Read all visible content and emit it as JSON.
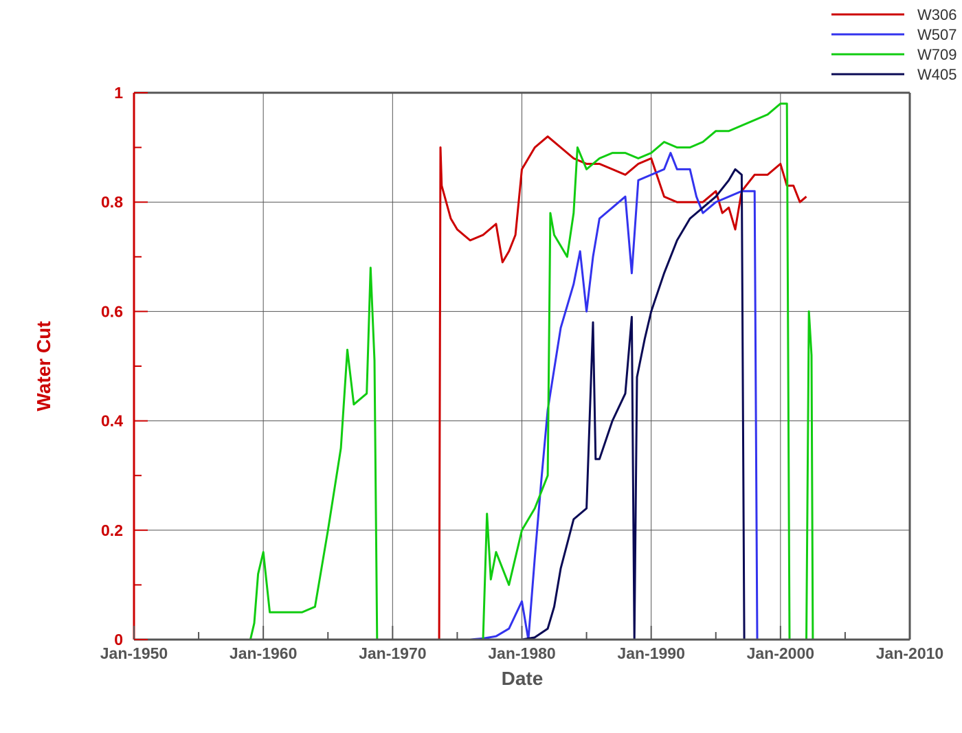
{
  "chart_data": {
    "type": "line",
    "xlabel": "Date",
    "ylabel": "Water Cut",
    "xlim": [
      1950,
      2010
    ],
    "ylim": [
      0,
      1
    ],
    "x_ticks": [
      {
        "value": 1950,
        "label": "Jan-1950"
      },
      {
        "value": 1960,
        "label": "Jan-1960"
      },
      {
        "value": 1970,
        "label": "Jan-1970"
      },
      {
        "value": 1980,
        "label": "Jan-1980"
      },
      {
        "value": 1990,
        "label": "Jan-1990"
      },
      {
        "value": 2000,
        "label": "Jan-2000"
      },
      {
        "value": 2010,
        "label": "Jan-2010"
      }
    ],
    "y_ticks": [
      {
        "value": 0,
        "label": "0"
      },
      {
        "value": 0.2,
        "label": "0.2"
      },
      {
        "value": 0.4,
        "label": "0.4"
      },
      {
        "value": 0.6,
        "label": "0.6"
      },
      {
        "value": 0.8,
        "label": "0.8"
      },
      {
        "value": 1,
        "label": "1"
      }
    ],
    "grid": true,
    "legend_position": "top-right",
    "series": [
      {
        "name": "W306",
        "color": "#cc0000",
        "points": [
          [
            1973.6,
            0
          ],
          [
            1973.7,
            0.9
          ],
          [
            1973.8,
            0.83
          ],
          [
            1974.5,
            0.77
          ],
          [
            1975,
            0.75
          ],
          [
            1975.5,
            0.74
          ],
          [
            1976,
            0.73
          ],
          [
            1977,
            0.74
          ],
          [
            1978,
            0.76
          ],
          [
            1978.5,
            0.69
          ],
          [
            1979,
            0.71
          ],
          [
            1979.5,
            0.74
          ],
          [
            1980,
            0.86
          ],
          [
            1981,
            0.9
          ],
          [
            1982,
            0.92
          ],
          [
            1983,
            0.9
          ],
          [
            1984,
            0.88
          ],
          [
            1985,
            0.87
          ],
          [
            1986,
            0.87
          ],
          [
            1987,
            0.86
          ],
          [
            1988,
            0.85
          ],
          [
            1989,
            0.87
          ],
          [
            1990,
            0.88
          ],
          [
            1991,
            0.81
          ],
          [
            1992,
            0.8
          ],
          [
            1993,
            0.8
          ],
          [
            1994,
            0.8
          ],
          [
            1995,
            0.82
          ],
          [
            1995.5,
            0.78
          ],
          [
            1996,
            0.79
          ],
          [
            1996.5,
            0.75
          ],
          [
            1997,
            0.82
          ],
          [
            1998,
            0.85
          ],
          [
            1999,
            0.85
          ],
          [
            2000,
            0.87
          ],
          [
            2000.5,
            0.83
          ],
          [
            2001,
            0.83
          ],
          [
            2001.5,
            0.8
          ],
          [
            2002,
            0.81
          ]
        ]
      },
      {
        "name": "W507",
        "color": "#3333ee",
        "points": [
          [
            1973.6,
            0
          ],
          [
            1976,
            0
          ],
          [
            1977,
            0.002
          ],
          [
            1978,
            0.006
          ],
          [
            1979,
            0.02
          ],
          [
            1980,
            0.07
          ],
          [
            1980.5,
            0
          ],
          [
            1981,
            0.15
          ],
          [
            1981.5,
            0.29
          ],
          [
            1982,
            0.42
          ],
          [
            1983,
            0.57
          ],
          [
            1984,
            0.65
          ],
          [
            1984.5,
            0.71
          ],
          [
            1985,
            0.6
          ],
          [
            1985.5,
            0.7
          ],
          [
            1986,
            0.77
          ],
          [
            1987,
            0.79
          ],
          [
            1988,
            0.81
          ],
          [
            1988.5,
            0.67
          ],
          [
            1989,
            0.84
          ],
          [
            1990,
            0.85
          ],
          [
            1991,
            0.86
          ],
          [
            1991.5,
            0.89
          ],
          [
            1992,
            0.86
          ],
          [
            1993,
            0.86
          ],
          [
            1993.5,
            0.81
          ],
          [
            1994,
            0.78
          ],
          [
            1995,
            0.8
          ],
          [
            1996,
            0.81
          ],
          [
            1997,
            0.82
          ],
          [
            1998,
            0.82
          ],
          [
            1998.2,
            0
          ]
        ]
      },
      {
        "name": "W709",
        "color": "#11cc11",
        "points": [
          [
            1959,
            0
          ],
          [
            1959.3,
            0.03
          ],
          [
            1959.6,
            0.12
          ],
          [
            1960,
            0.16
          ],
          [
            1960.5,
            0.05
          ],
          [
            1961,
            0.05
          ],
          [
            1962,
            0.05
          ],
          [
            1963,
            0.05
          ],
          [
            1964,
            0.06
          ],
          [
            1965,
            0.2
          ],
          [
            1966,
            0.35
          ],
          [
            1966.5,
            0.53
          ],
          [
            1967,
            0.43
          ],
          [
            1968,
            0.45
          ],
          [
            1968.3,
            0.68
          ],
          [
            1968.6,
            0.51
          ],
          [
            1968.8,
            0
          ],
          [
            1977,
            0
          ],
          [
            1977.3,
            0.23
          ],
          [
            1977.6,
            0.11
          ],
          [
            1978,
            0.16
          ],
          [
            1979,
            0.1
          ],
          [
            1980,
            0.2
          ],
          [
            1981,
            0.24
          ],
          [
            1982,
            0.3
          ],
          [
            1982.2,
            0.78
          ],
          [
            1982.5,
            0.74
          ],
          [
            1983,
            0.72
          ],
          [
            1983.5,
            0.7
          ],
          [
            1984,
            0.78
          ],
          [
            1984.3,
            0.9
          ],
          [
            1985,
            0.86
          ],
          [
            1986,
            0.88
          ],
          [
            1987,
            0.89
          ],
          [
            1988,
            0.89
          ],
          [
            1989,
            0.88
          ],
          [
            1990,
            0.89
          ],
          [
            1991,
            0.91
          ],
          [
            1992,
            0.9
          ],
          [
            1993,
            0.9
          ],
          [
            1994,
            0.91
          ],
          [
            1995,
            0.93
          ],
          [
            1996,
            0.93
          ],
          [
            1997,
            0.94
          ],
          [
            1998,
            0.95
          ],
          [
            1999,
            0.96
          ],
          [
            2000,
            0.98
          ],
          [
            2000.5,
            0.98
          ],
          [
            2000.7,
            0
          ],
          [
            2002,
            0
          ],
          [
            2002.2,
            0.6
          ],
          [
            2002.4,
            0.52
          ],
          [
            2002.5,
            0
          ]
        ]
      },
      {
        "name": "W405",
        "color": "#0a0a55",
        "points": [
          [
            1976,
            0
          ],
          [
            1980,
            0
          ],
          [
            1981,
            0.004
          ],
          [
            1982,
            0.02
          ],
          [
            1982.5,
            0.06
          ],
          [
            1983,
            0.13
          ],
          [
            1984,
            0.22
          ],
          [
            1985,
            0.24
          ],
          [
            1985.5,
            0.58
          ],
          [
            1985.7,
            0.33
          ],
          [
            1986,
            0.33
          ],
          [
            1987,
            0.4
          ],
          [
            1988,
            0.45
          ],
          [
            1988.5,
            0.59
          ],
          [
            1988.7,
            0
          ],
          [
            1988.9,
            0.48
          ],
          [
            1989.5,
            0.55
          ],
          [
            1990,
            0.6
          ],
          [
            1991,
            0.67
          ],
          [
            1992,
            0.73
          ],
          [
            1993,
            0.77
          ],
          [
            1994,
            0.79
          ],
          [
            1995,
            0.81
          ],
          [
            1996,
            0.84
          ],
          [
            1996.5,
            0.86
          ],
          [
            1997,
            0.85
          ],
          [
            1997.2,
            0
          ]
        ]
      }
    ]
  }
}
